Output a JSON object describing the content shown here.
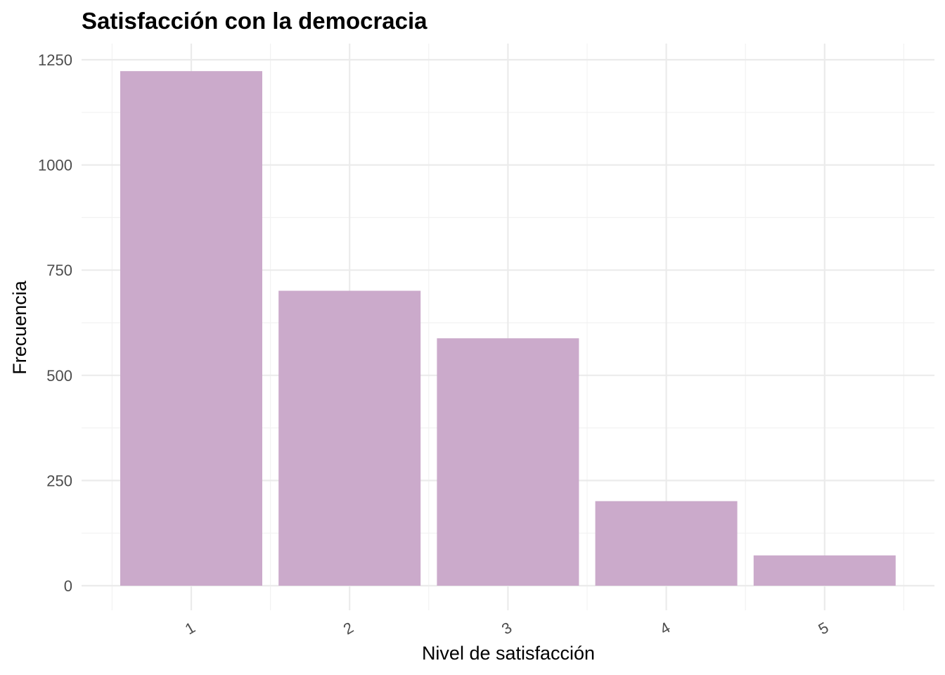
{
  "chart_data": {
    "type": "bar",
    "title": "Satisfacción con la democracia",
    "xlabel": "Nivel de satisfacción",
    "ylabel": "Frecuencia",
    "categories": [
      "1",
      "2",
      "3",
      "4",
      "5"
    ],
    "values": [
      1223,
      701,
      588,
      201,
      72
    ],
    "ylim": [
      0,
      1250
    ],
    "yticks": [
      "0",
      "250",
      "500",
      "750",
      "1000",
      "1250"
    ],
    "grid": true,
    "bar_color": "#cbaacb",
    "legend": "none"
  }
}
